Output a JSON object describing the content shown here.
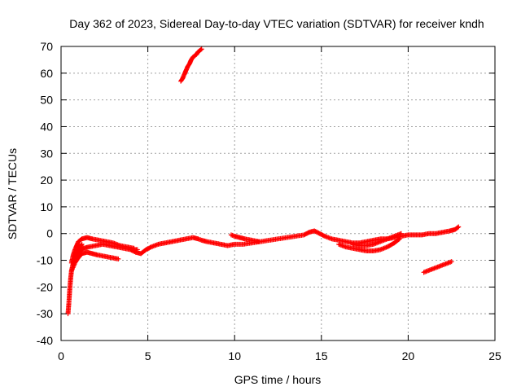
{
  "chart_data": {
    "type": "scatter",
    "title": "Day 362 of 2023, Sidereal Day-to-day VTEC variation (SDTVAR) for receiver kndh",
    "xlabel": "GPS time / hours",
    "ylabel": "SDTVAR / TECUs",
    "xlim": [
      0,
      25
    ],
    "ylim": [
      -40,
      70
    ],
    "xticks": [
      0,
      5,
      10,
      15,
      20,
      25
    ],
    "yticks": [
      -40,
      -30,
      -20,
      -10,
      0,
      10,
      20,
      30,
      40,
      50,
      60,
      70
    ],
    "grid": true,
    "legend": "none",
    "marker": "+",
    "color": "#ff0000",
    "series": [
      {
        "name": "early-drop",
        "x": [
          0.4,
          0.45,
          0.5,
          0.55,
          0.6,
          0.7,
          0.8,
          0.9,
          1.0,
          1.1,
          1.2
        ],
        "y": [
          -30,
          -26,
          -21,
          -17,
          -14,
          -11,
          -9,
          -7.5,
          -6,
          -5,
          -4
        ]
      },
      {
        "name": "early-arc-upper",
        "x": [
          0.6,
          0.7,
          0.8,
          0.9,
          1.0,
          1.2,
          1.5,
          1.8,
          2.2,
          2.6,
          3.0,
          3.4,
          3.8,
          4.2
        ],
        "y": [
          -11,
          -8,
          -6,
          -4.5,
          -3,
          -2,
          -1.5,
          -2,
          -2.5,
          -3,
          -3.5,
          -4.5,
          -5,
          -5.5
        ]
      },
      {
        "name": "early-arc-lower",
        "x": [
          0.6,
          0.8,
          1.0,
          1.2,
          1.5,
          1.8,
          2.1,
          2.5,
          2.9,
          3.3
        ],
        "y": [
          -14,
          -11,
          -9,
          -7.5,
          -7,
          -7.5,
          -8,
          -8.5,
          -9,
          -9.5
        ]
      },
      {
        "name": "early-arc-mid",
        "x": [
          0.8,
          1.0,
          1.3,
          1.6,
          2.0,
          2.4,
          2.8,
          3.2,
          3.6,
          4.0,
          4.4
        ],
        "y": [
          -9,
          -7,
          -5.5,
          -5,
          -4.5,
          -4,
          -4.5,
          -5,
          -5.5,
          -6,
          -6
        ]
      },
      {
        "name": "main-trace",
        "x": [
          4.0,
          4.3,
          4.6,
          4.9,
          5.2,
          5.6,
          6.0,
          6.4,
          6.8,
          7.2,
          7.6,
          7.9,
          8.1,
          8.4,
          8.8,
          9.2,
          9.6,
          10.0,
          10.5,
          11.0,
          11.5,
          12.0,
          12.5,
          13.0,
          13.5,
          14.0,
          14.3,
          14.6,
          14.9,
          15.2,
          15.6,
          16.0,
          16.4,
          16.8,
          17.2,
          17.6,
          18.0,
          18.4,
          18.8,
          19.2,
          19.6,
          20.0,
          20.4,
          20.8,
          21.2,
          21.6,
          22.0,
          22.4,
          22.7,
          22.9
        ],
        "y": [
          -6,
          -7,
          -7.5,
          -6,
          -5,
          -4,
          -3.5,
          -3,
          -2.5,
          -2,
          -1.5,
          -2,
          -2.5,
          -3,
          -3.5,
          -4,
          -4.5,
          -4,
          -4,
          -3.5,
          -3,
          -2.5,
          -2,
          -1.5,
          -1,
          -0.5,
          0.5,
          1,
          0,
          -1,
          -2,
          -2.5,
          -3,
          -3.5,
          -3.5,
          -3,
          -2.5,
          -2,
          -2,
          -1.5,
          -1,
          -0.5,
          -0.5,
          -0.5,
          0,
          0,
          0.5,
          1,
          1.5,
          2.5
        ]
      },
      {
        "name": "evening-dip",
        "x": [
          16.0,
          16.4,
          16.8,
          17.2,
          17.6,
          18.0,
          18.4,
          18.8,
          19.2,
          19.5
        ],
        "y": [
          -4,
          -5,
          -5.5,
          -6,
          -6.5,
          -6.5,
          -6,
          -5,
          -3.5,
          -2
        ]
      },
      {
        "name": "evening-mid",
        "x": [
          16.8,
          17.2,
          17.6,
          18.0,
          18.4,
          18.8,
          19.2,
          19.6
        ],
        "y": [
          -4,
          -4.5,
          -4.5,
          -4,
          -3,
          -2,
          -1,
          0
        ]
      },
      {
        "name": "segment-10h",
        "x": [
          9.8,
          10.0,
          10.3,
          10.6,
          11.0,
          11.4
        ],
        "y": [
          -0.5,
          -1,
          -1.5,
          -2,
          -2.5,
          -3
        ]
      },
      {
        "name": "high-arc",
        "x": [
          6.9,
          7.0,
          7.1,
          7.2,
          7.3,
          7.4,
          7.5,
          7.6,
          7.7,
          7.8,
          7.9,
          8.0,
          8.1
        ],
        "y": [
          57,
          58,
          59.5,
          61,
          62.5,
          63.5,
          65,
          66,
          66.5,
          67,
          68,
          68.5,
          69
        ]
      },
      {
        "name": "late-segment",
        "x": [
          20.9,
          21.1,
          21.3,
          21.5,
          21.7,
          21.9,
          22.1,
          22.3,
          22.5
        ],
        "y": [
          -14.5,
          -14,
          -13.5,
          -13,
          -12.5,
          -12,
          -11.5,
          -11,
          -10.5
        ]
      }
    ]
  }
}
